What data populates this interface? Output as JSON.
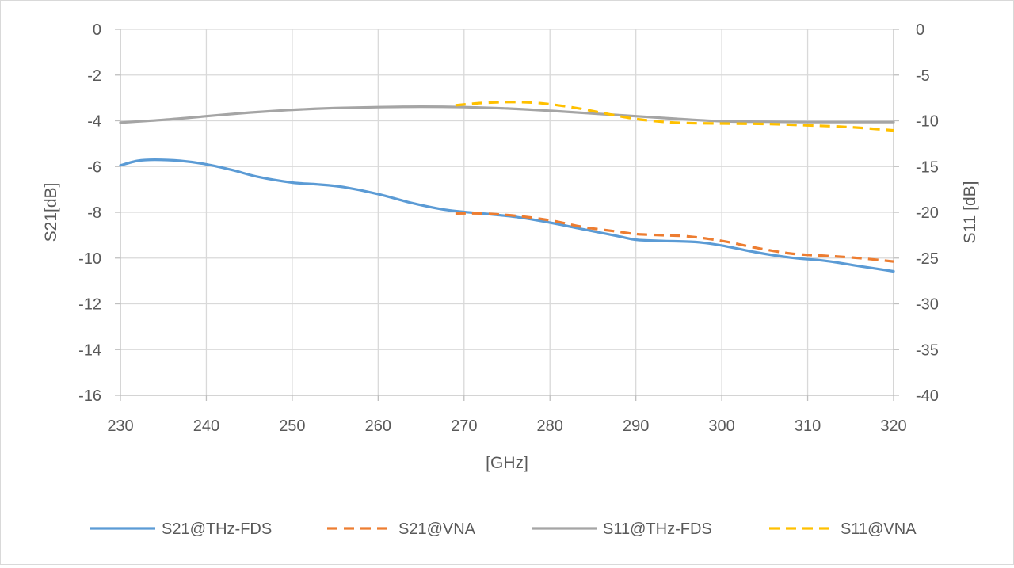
{
  "chart_data": {
    "type": "line",
    "title": "",
    "xlabel": "[GHz]",
    "ylabel": "S21[dB]",
    "y2label": "S11 [dB]",
    "xlim": [
      230,
      320
    ],
    "ylim": [
      -16,
      0
    ],
    "y2lim": [
      -40,
      0
    ],
    "x_ticks": [
      "230",
      "240",
      "250",
      "260",
      "270",
      "280",
      "290",
      "300",
      "310",
      "320"
    ],
    "y_ticks": [
      "0",
      "-2",
      "-4",
      "-6",
      "-8",
      "-10",
      "-12",
      "-14",
      "-16"
    ],
    "y2_ticks": [
      "0",
      "-5",
      "-10",
      "-15",
      "-20",
      "-25",
      "-30",
      "-35",
      "-40"
    ],
    "grid": true,
    "legend_position": "bottom",
    "series": [
      {
        "name": "S21@THz-FDS",
        "axis": "left",
        "color": "#5b9bd5",
        "style": "solid",
        "x": [
          230,
          232,
          234,
          237,
          240,
          243,
          246,
          250,
          253,
          256,
          260,
          264,
          268,
          272,
          276,
          280,
          284,
          288,
          290,
          293,
          297,
          300,
          304,
          308,
          312,
          316,
          320
        ],
        "y": [
          -5.95,
          -5.75,
          -5.7,
          -5.75,
          -5.9,
          -6.15,
          -6.45,
          -6.7,
          -6.78,
          -6.9,
          -7.2,
          -7.6,
          -7.9,
          -8.05,
          -8.2,
          -8.45,
          -8.75,
          -9.05,
          -9.2,
          -9.25,
          -9.3,
          -9.45,
          -9.75,
          -9.98,
          -10.12,
          -10.35,
          -10.58
        ]
      },
      {
        "name": "S21@VNA",
        "axis": "left",
        "color": "#ed7d31",
        "style": "dashed",
        "x": [
          269,
          272,
          276,
          280,
          284,
          288,
          290,
          293,
          296,
          300,
          304,
          308,
          312,
          316,
          320
        ],
        "y": [
          -8.05,
          -8.05,
          -8.15,
          -8.35,
          -8.65,
          -8.85,
          -8.95,
          -9.0,
          -9.05,
          -9.25,
          -9.55,
          -9.8,
          -9.9,
          -10.0,
          -10.15
        ]
      },
      {
        "name": "S11@THz-FDS",
        "axis": "right",
        "color": "#a5a5a5",
        "style": "solid",
        "x": [
          230,
          235,
          240,
          245,
          250,
          255,
          260,
          265,
          270,
          275,
          280,
          285,
          290,
          295,
          300,
          305,
          310,
          315,
          320
        ],
        "y": [
          -10.2,
          -9.9,
          -9.5,
          -9.1,
          -8.8,
          -8.6,
          -8.5,
          -8.45,
          -8.5,
          -8.65,
          -8.9,
          -9.2,
          -9.5,
          -9.8,
          -10.05,
          -10.1,
          -10.15,
          -10.15,
          -10.15
        ]
      },
      {
        "name": "S11@VNA",
        "axis": "right",
        "color": "#ffc000",
        "style": "dashed",
        "x": [
          269,
          272,
          275,
          278,
          281,
          284,
          287,
          290,
          293,
          296,
          300,
          305,
          310,
          315,
          320
        ],
        "y": [
          -8.3,
          -8.05,
          -7.95,
          -8.0,
          -8.3,
          -8.75,
          -9.3,
          -9.8,
          -10.1,
          -10.25,
          -10.3,
          -10.35,
          -10.5,
          -10.7,
          -11.05
        ]
      }
    ]
  }
}
